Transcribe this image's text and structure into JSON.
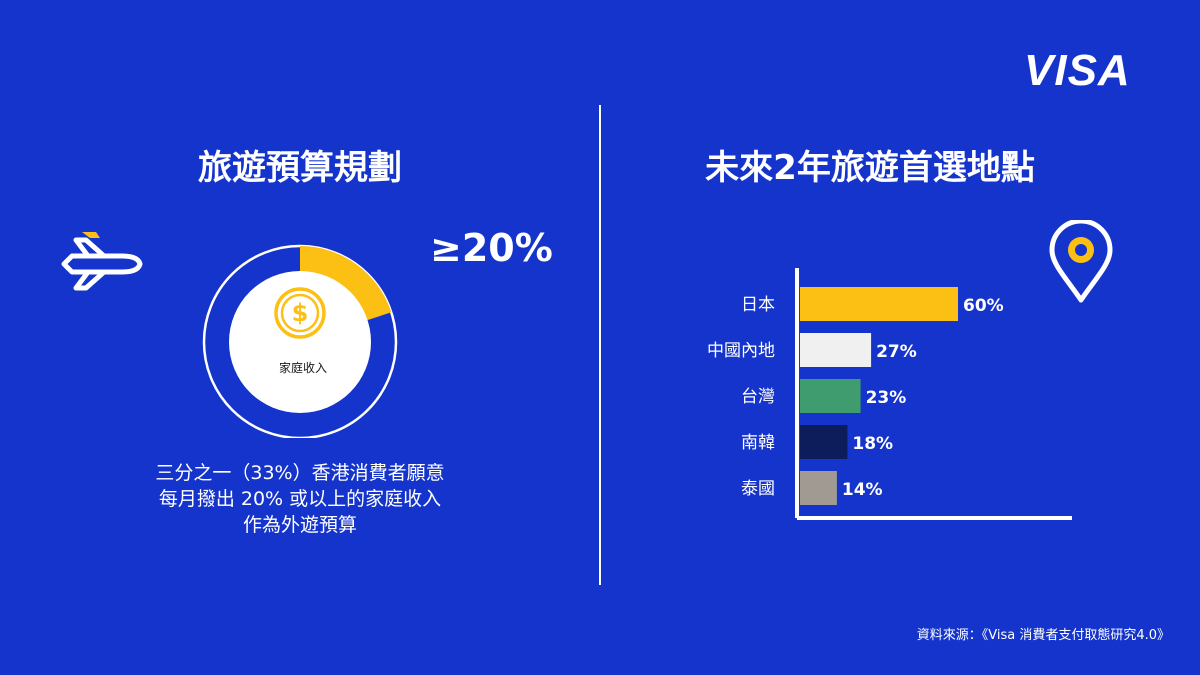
{
  "logo": {
    "text": "VISA"
  },
  "left_panel": {
    "heading": "旅遊預算規劃",
    "big_percentage": "≥20%",
    "center_label": "家庭收入",
    "highlight_fraction": 0.2,
    "caption_lines": [
      "三分之一（33%）香港消費者願意",
      "每月撥出 20% 或以上的家庭收入",
      "作為外遊預算"
    ],
    "icons": [
      "airplane-icon",
      "dollar-coin-icon"
    ]
  },
  "right_panel": {
    "heading": "未來2年旅遊首選地點",
    "icons": [
      "location-pin-icon"
    ]
  },
  "chart_data": {
    "type": "bar",
    "orientation": "horizontal",
    "categories": [
      "日本",
      "中國內地",
      "台灣",
      "南韓",
      "泰國"
    ],
    "values": [
      60,
      27,
      23,
      18,
      14
    ],
    "value_labels": [
      "60%",
      "27%",
      "23%",
      "18%",
      "14%"
    ],
    "colors": [
      "#fcc015",
      "#f0f0f0",
      "#3f9c6e",
      "#0d1d5c",
      "#a19a93"
    ],
    "xlim": [
      0,
      100
    ],
    "grid": false
  },
  "footer": {
    "source": "資料來源：《Visa 消費者支付取態研究4.0》"
  },
  "colors": {
    "background": "#1434cb",
    "accent": "#fcc015",
    "text": "#ffffff"
  }
}
